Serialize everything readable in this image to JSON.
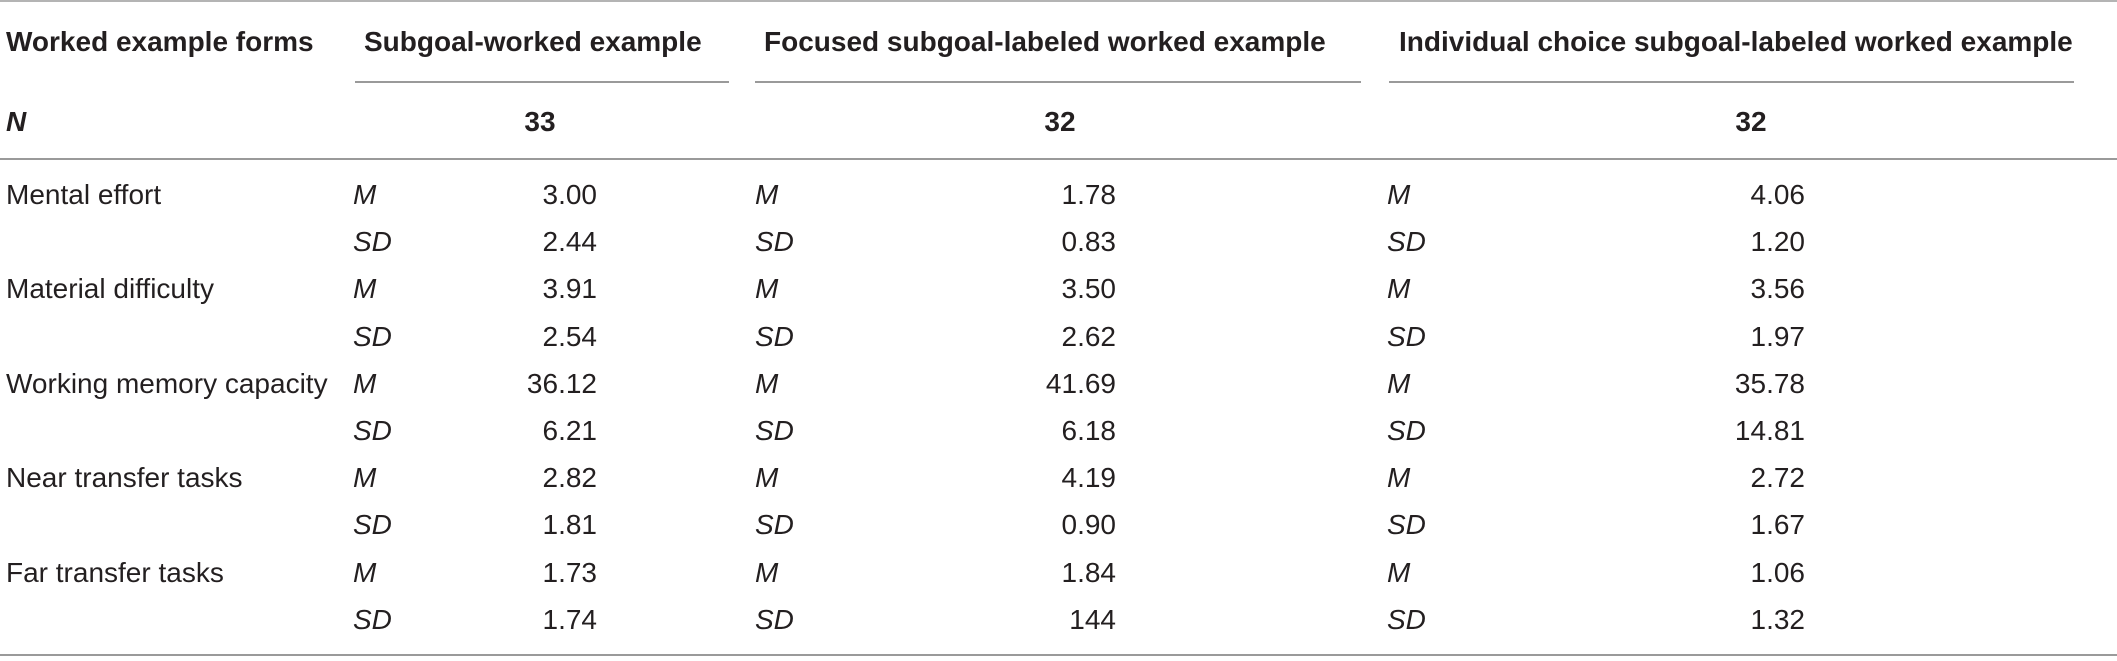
{
  "header": {
    "forms_label": "Worked example forms",
    "groups": [
      "Subgoal-worked example",
      "Focused subgoal-labeled worked example",
      "Individual choice subgoal-labeled worked example"
    ]
  },
  "n_row": {
    "label": "N",
    "values": [
      "33",
      "32",
      "32"
    ]
  },
  "rows": [
    {
      "label": "Mental effort",
      "stat": "M",
      "values": [
        "3.00",
        "1.78",
        "4.06"
      ]
    },
    {
      "label": "",
      "stat": "SD",
      "values": [
        "2.44",
        "0.83",
        "1.20"
      ]
    },
    {
      "label": "Material difficulty",
      "stat": "M",
      "values": [
        "3.91",
        "3.50",
        "3.56"
      ]
    },
    {
      "label": "",
      "stat": "SD",
      "values": [
        "2.54",
        "2.62",
        "1.97"
      ]
    },
    {
      "label": "Working memory capacity",
      "stat": "M",
      "values": [
        "36.12",
        "41.69",
        "35.78"
      ]
    },
    {
      "label": "",
      "stat": "SD",
      "values": [
        "6.21",
        "6.18",
        "14.81"
      ]
    },
    {
      "label": "Near transfer tasks",
      "stat": "M",
      "values": [
        "2.82",
        "4.19",
        "2.72"
      ]
    },
    {
      "label": "",
      "stat": "SD",
      "values": [
        "1.81",
        "0.90",
        "1.67"
      ]
    },
    {
      "label": "Far transfer tasks",
      "stat": "M",
      "values": [
        "1.73",
        "1.84",
        "1.06"
      ]
    },
    {
      "label": "",
      "stat": "SD",
      "values": [
        "1.74",
        "144",
        "1.32"
      ]
    }
  ]
}
